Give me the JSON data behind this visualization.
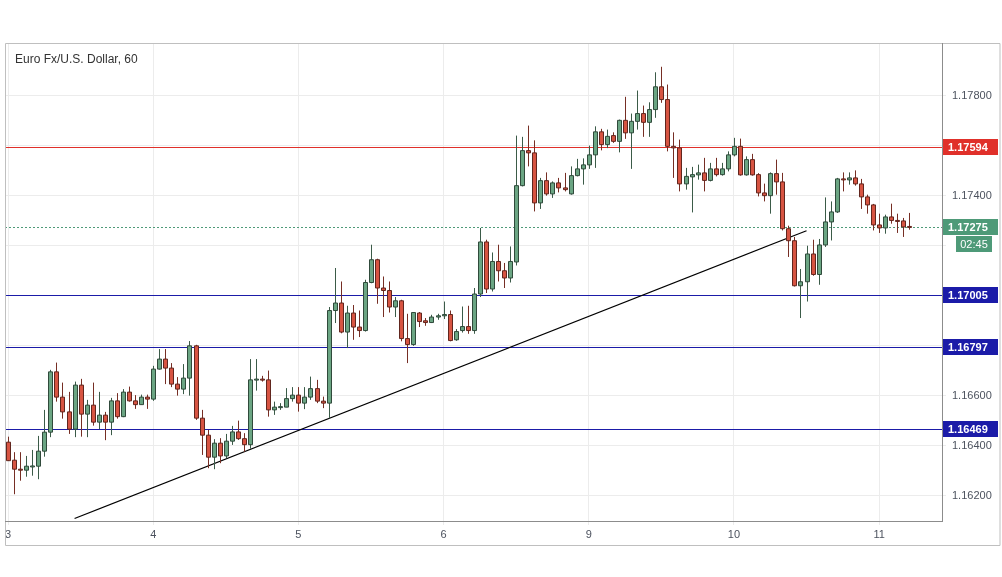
{
  "chart_data": {
    "type": "candlestick",
    "title": "Euro Fx/U.S. Dollar, 60",
    "categories": [
      "3",
      null,
      null,
      null,
      null,
      null,
      null,
      null,
      null,
      null,
      null,
      null,
      null,
      null,
      null,
      null,
      null,
      null,
      null,
      null,
      null,
      null,
      null,
      null,
      "4",
      null,
      null,
      null,
      null,
      null,
      null,
      null,
      null,
      null,
      null,
      null,
      null,
      null,
      null,
      null,
      null,
      null,
      null,
      null,
      null,
      null,
      null,
      null,
      "5",
      null,
      null,
      null,
      null,
      null,
      null,
      null,
      null,
      null,
      null,
      null,
      null,
      null,
      null,
      null,
      null,
      null,
      null,
      null,
      null,
      null,
      null,
      null,
      "6",
      null,
      null,
      null,
      null,
      null,
      null,
      null,
      null,
      null,
      null,
      null,
      null,
      null,
      null,
      null,
      null,
      null,
      null,
      null,
      null,
      null,
      null,
      null,
      "9",
      null,
      null,
      null,
      null,
      null,
      null,
      null,
      null,
      null,
      null,
      null,
      null,
      null,
      null,
      null,
      null,
      null,
      null,
      null,
      null,
      null,
      null,
      null,
      "10",
      null,
      null,
      null,
      null,
      null,
      null,
      null,
      null,
      null,
      null,
      null,
      null,
      null,
      null,
      null,
      null,
      null,
      null,
      null,
      null,
      null,
      null,
      null,
      "11",
      null,
      null,
      null,
      null,
      null
    ],
    "ohlc": [
      [
        1.16415,
        1.16437,
        1.1634,
        1.16341
      ],
      [
        1.16343,
        1.16375,
        1.16207,
        1.16307
      ],
      [
        1.16307,
        1.16375,
        1.16261,
        1.16303
      ],
      [
        1.16303,
        1.1636,
        1.16277,
        1.16319
      ],
      [
        1.16319,
        1.16384,
        1.16281,
        1.1632
      ],
      [
        1.16319,
        1.1644,
        1.16267,
        1.16379
      ],
      [
        1.16379,
        1.16544,
        1.16357,
        1.16455
      ],
      [
        1.16455,
        1.16704,
        1.16435,
        1.16696
      ],
      [
        1.16696,
        1.16733,
        1.16577,
        1.16595
      ],
      [
        1.16595,
        1.16653,
        1.16509,
        1.16536
      ],
      [
        1.16536,
        1.16616,
        1.16448,
        1.16467
      ],
      [
        1.16467,
        1.16657,
        1.16435,
        1.16643
      ],
      [
        1.16643,
        1.16668,
        1.16437,
        1.16527
      ],
      [
        1.16527,
        1.16584,
        1.16435,
        1.16563
      ],
      [
        1.16563,
        1.16653,
        1.16481,
        1.16495
      ],
      [
        1.16495,
        1.16616,
        1.16467,
        1.16523
      ],
      [
        1.16523,
        1.16536,
        1.16423,
        1.16495
      ],
      [
        1.16495,
        1.16592,
        1.16443,
        1.1658
      ],
      [
        1.1658,
        1.16611,
        1.16509,
        1.16517
      ],
      [
        1.16517,
        1.16627,
        1.16515,
        1.16615
      ],
      [
        1.16615,
        1.16637,
        1.16577,
        1.1658
      ],
      [
        1.1658,
        1.16603,
        1.16548,
        1.16565
      ],
      [
        1.16565,
        1.16605,
        1.16565,
        1.16595
      ],
      [
        1.16595,
        1.16605,
        1.16548,
        1.16587
      ],
      [
        1.16587,
        1.1672,
        1.1658,
        1.16707
      ],
      [
        1.16707,
        1.16787,
        1.16705,
        1.16747
      ],
      [
        1.16747,
        1.16787,
        1.16647,
        1.16711
      ],
      [
        1.16711,
        1.16731,
        1.16635,
        1.16647
      ],
      [
        1.16647,
        1.16675,
        1.16601,
        1.16627
      ],
      [
        1.16627,
        1.16727,
        1.16607,
        1.16671
      ],
      [
        1.16671,
        1.16819,
        1.16601,
        1.168
      ],
      [
        1.168,
        1.16804,
        1.16504,
        1.16511
      ],
      [
        1.16511,
        1.16544,
        1.16364,
        1.16443
      ],
      [
        1.16443,
        1.16464,
        1.16311,
        1.16355
      ],
      [
        1.16355,
        1.16427,
        1.16307,
        1.16411
      ],
      [
        1.16411,
        1.16431,
        1.16331,
        1.1636
      ],
      [
        1.1636,
        1.16448,
        1.16351,
        1.16419
      ],
      [
        1.16419,
        1.1648,
        1.16404,
        1.16456
      ],
      [
        1.16456,
        1.16501,
        1.16424,
        1.16429
      ],
      [
        1.16429,
        1.16451,
        1.16377,
        1.16405
      ],
      [
        1.16405,
        1.16747,
        1.16389,
        1.16664
      ],
      [
        1.16664,
        1.16747,
        1.16621,
        1.16667
      ],
      [
        1.16667,
        1.1668,
        1.16657,
        1.16664
      ],
      [
        1.16664,
        1.16701,
        1.16517,
        1.16544
      ],
      [
        1.16544,
        1.16577,
        1.16524,
        1.16555
      ],
      [
        1.16555,
        1.16571,
        1.16544,
        1.16557
      ],
      [
        1.16555,
        1.16631,
        1.16555,
        1.16589
      ],
      [
        1.16589,
        1.16635,
        1.16577,
        1.16603
      ],
      [
        1.16603,
        1.16635,
        1.16537,
        1.16571
      ],
      [
        1.16571,
        1.16635,
        1.16547,
        1.16595
      ],
      [
        1.16595,
        1.16677,
        1.16584,
        1.16629
      ],
      [
        1.16629,
        1.16664,
        1.16571,
        1.16579
      ],
      [
        1.16579,
        1.16597,
        1.16551,
        1.16571
      ],
      [
        1.16571,
        1.16955,
        1.16511,
        1.16941
      ],
      [
        1.16941,
        1.17111,
        1.16891,
        1.16971
      ],
      [
        1.16971,
        1.17057,
        1.1685,
        1.16855
      ],
      [
        1.16855,
        1.1696,
        1.16791,
        1.16931
      ],
      [
        1.16931,
        1.16963,
        1.16824,
        1.16875
      ],
      [
        1.16875,
        1.16941,
        1.16835,
        1.16861
      ],
      [
        1.16861,
        1.17064,
        1.16857,
        1.17053
      ],
      [
        1.17053,
        1.17204,
        1.1705,
        1.17144
      ],
      [
        1.17144,
        1.17148,
        1.16968,
        1.17031
      ],
      [
        1.17031,
        1.17077,
        1.16915,
        1.17021
      ],
      [
        1.17021,
        1.17057,
        1.16933,
        1.16955
      ],
      [
        1.16955,
        1.16995,
        1.16915,
        1.1698
      ],
      [
        1.1698,
        1.16984,
        1.16818,
        1.16829
      ],
      [
        1.16829,
        1.16928,
        1.16731,
        1.16805
      ],
      [
        1.16805,
        1.16935,
        1.168,
        1.16933
      ],
      [
        1.16931,
        1.16935,
        1.16875,
        1.16897
      ],
      [
        1.169,
        1.16911,
        1.1688,
        1.16893
      ],
      [
        1.16893,
        1.16924,
        1.16891,
        1.16915
      ],
      [
        1.16915,
        1.16928,
        1.16904,
        1.1692
      ],
      [
        1.1692,
        1.16977,
        1.16907,
        1.16925
      ],
      [
        1.16925,
        1.16941,
        1.16818,
        1.16821
      ],
      [
        1.16824,
        1.16867,
        1.1682,
        1.16857
      ],
      [
        1.16861,
        1.16957,
        1.16853,
        1.16877
      ],
      [
        1.16877,
        1.1696,
        1.16848,
        1.16861
      ],
      [
        1.16861,
        1.17031,
        1.16848,
        1.17007
      ],
      [
        1.17007,
        1.17271,
        1.16995,
        1.17215
      ],
      [
        1.17215,
        1.17224,
        1.17011,
        1.17027
      ],
      [
        1.17027,
        1.17173,
        1.17017,
        1.17137
      ],
      [
        1.17137,
        1.17204,
        1.17057,
        1.171
      ],
      [
        1.171,
        1.17131,
        1.17031,
        1.17071
      ],
      [
        1.17071,
        1.17197,
        1.17053,
        1.17137
      ],
      [
        1.17135,
        1.1764,
        1.17121,
        1.1744
      ],
      [
        1.1744,
        1.17635,
        1.17437,
        1.1758
      ],
      [
        1.1758,
        1.1768,
        1.17517,
        1.17571
      ],
      [
        1.17571,
        1.17621,
        1.17337,
        1.17371
      ],
      [
        1.17371,
        1.17471,
        1.17347,
        1.1746
      ],
      [
        1.1746,
        1.17493,
        1.174,
        1.17407
      ],
      [
        1.17407,
        1.17457,
        1.17391,
        1.17451
      ],
      [
        1.17451,
        1.17471,
        1.17413,
        1.17431
      ],
      [
        1.17431,
        1.17491,
        1.17417,
        1.17424
      ],
      [
        1.17407,
        1.17517,
        1.17404,
        1.1748
      ],
      [
        1.1748,
        1.17547,
        1.17477,
        1.17507
      ],
      [
        1.17507,
        1.17549,
        1.17444,
        1.17523
      ],
      [
        1.17523,
        1.176,
        1.17507,
        1.17563
      ],
      [
        1.17563,
        1.17677,
        1.17511,
        1.17655
      ],
      [
        1.17655,
        1.17667,
        1.17581,
        1.17604
      ],
      [
        1.17604,
        1.17664,
        1.1759,
        1.17637
      ],
      [
        1.1764,
        1.17653,
        1.17611,
        1.17617
      ],
      [
        1.17617,
        1.17704,
        1.17573,
        1.17701
      ],
      [
        1.17701,
        1.17795,
        1.17627,
        1.17651
      ],
      [
        1.17651,
        1.17728,
        1.17507,
        1.17697
      ],
      [
        1.17697,
        1.1782,
        1.17664,
        1.17728
      ],
      [
        1.17728,
        1.1776,
        1.17635,
        1.17693
      ],
      [
        1.17693,
        1.17773,
        1.17635,
        1.17744
      ],
      [
        1.17744,
        1.17893,
        1.17711,
        1.17835
      ],
      [
        1.17835,
        1.17915,
        1.17771,
        1.17784
      ],
      [
        1.17784,
        1.17844,
        1.17577,
        1.17597
      ],
      [
        1.17597,
        1.17653,
        1.17471,
        1.17591
      ],
      [
        1.17591,
        1.17624,
        1.17417,
        1.17447
      ],
      [
        1.17447,
        1.17511,
        1.17424,
        1.17477
      ],
      [
        1.17475,
        1.17515,
        1.17333,
        1.17484
      ],
      [
        1.17483,
        1.17524,
        1.17464,
        1.17491
      ],
      [
        1.17491,
        1.17551,
        1.17417,
        1.17461
      ],
      [
        1.17461,
        1.17531,
        1.17457,
        1.17507
      ],
      [
        1.17507,
        1.17551,
        1.17477,
        1.17484
      ],
      [
        1.17484,
        1.17531,
        1.1748,
        1.17507
      ],
      [
        1.17507,
        1.17577,
        1.17497,
        1.17563
      ],
      [
        1.17563,
        1.17631,
        1.17557,
        1.17597
      ],
      [
        1.17597,
        1.17628,
        1.1748,
        1.17483
      ],
      [
        1.17483,
        1.17557,
        1.1748,
        1.17544
      ],
      [
        1.17544,
        1.17567,
        1.1748,
        1.17483
      ],
      [
        1.17484,
        1.1749,
        1.17397,
        1.17411
      ],
      [
        1.17411,
        1.17448,
        1.17377,
        1.174
      ],
      [
        1.174,
        1.17493,
        1.17328,
        1.17488
      ],
      [
        1.17488,
        1.17544,
        1.17404,
        1.17455
      ],
      [
        1.17455,
        1.17491,
        1.17261,
        1.17268
      ],
      [
        1.17268,
        1.1728,
        1.17155,
        1.1722
      ],
      [
        1.1722,
        1.17235,
        1.17037,
        1.1704
      ],
      [
        1.1704,
        1.17107,
        1.16911,
        1.17056
      ],
      [
        1.17056,
        1.172,
        1.16977,
        1.17167
      ],
      [
        1.17167,
        1.17224,
        1.1708,
        1.17085
      ],
      [
        1.17085,
        1.17227,
        1.17044,
        1.17203
      ],
      [
        1.17203,
        1.17393,
        1.17195,
        1.17295
      ],
      [
        1.17295,
        1.17377,
        1.17221,
        1.17335
      ],
      [
        1.17335,
        1.17471,
        1.17331,
        1.17467
      ],
      [
        1.17467,
        1.17493,
        1.17417,
        1.17463
      ],
      [
        1.17463,
        1.17493,
        1.17444,
        1.17471
      ],
      [
        1.17471,
        1.17501,
        1.1744,
        1.17447
      ],
      [
        1.17447,
        1.17467,
        1.17347,
        1.17395
      ],
      [
        1.17395,
        1.17404,
        1.17328,
        1.17363
      ],
      [
        1.17363,
        1.17367,
        1.17261,
        1.17283
      ],
      [
        1.17283,
        1.17328,
        1.17251,
        1.17271
      ],
      [
        1.17271,
        1.17324,
        1.17248,
        1.17315
      ],
      [
        1.17315,
        1.17368,
        1.17288,
        1.17301
      ],
      [
        1.17301,
        1.17328,
        1.17251,
        1.17297
      ],
      [
        1.17299,
        1.17311,
        1.17235,
        1.17275
      ],
      [
        1.17277,
        1.17331,
        1.17264,
        1.17275
      ]
    ],
    "colors": [
      "#d75442",
      "#d75442",
      "#d75442",
      "#6ba583",
      "#6ba583",
      "#6ba583",
      "#6ba583",
      "#6ba583",
      "#d75442",
      "#d75442",
      "#d75442",
      "#6ba583",
      "#d75442",
      "#6ba583",
      "#d75442",
      "#6ba583",
      "#d75442",
      "#6ba583",
      "#d75442",
      "#6ba583",
      "#d75442",
      "#d75442",
      "#6ba583",
      "#d75442",
      "#6ba583",
      "#6ba583",
      "#d75442",
      "#d75442",
      "#d75442",
      "#6ba583",
      "#6ba583",
      "#d75442",
      "#d75442",
      "#d75442",
      "#6ba583",
      "#d75442",
      "#6ba583",
      "#6ba583",
      "#d75442",
      "#d75442",
      "#6ba583",
      "#6ba583",
      "#d75442",
      "#d75442",
      "#6ba583",
      "#6ba583",
      "#6ba583",
      "#6ba583",
      "#d75442",
      "#6ba583",
      "#6ba583",
      "#d75442",
      "#d75442",
      "#6ba583",
      "#6ba583",
      "#d75442",
      "#6ba583",
      "#d75442",
      "#d75442",
      "#6ba583",
      "#6ba583",
      "#d75442",
      "#d75442",
      "#d75442",
      "#6ba583",
      "#d75442",
      "#d75442",
      "#6ba583",
      "#d75442",
      "#d75442",
      "#6ba583",
      "#6ba583",
      "#6ba583",
      "#d75442",
      "#6ba583",
      "#6ba583",
      "#d75442",
      "#6ba583",
      "#6ba583",
      "#d75442",
      "#6ba583",
      "#d75442",
      "#d75442",
      "#6ba583",
      "#6ba583",
      "#6ba583",
      "#d75442",
      "#d75442",
      "#6ba583",
      "#d75442",
      "#6ba583",
      "#d75442",
      "#d75442",
      "#6ba583",
      "#6ba583",
      "#6ba583",
      "#6ba583",
      "#6ba583",
      "#d75442",
      "#6ba583",
      "#d75442",
      "#6ba583",
      "#d75442",
      "#6ba583",
      "#6ba583",
      "#d75442",
      "#6ba583",
      "#6ba583",
      "#d75442",
      "#d75442",
      "#d75442",
      "#d75442",
      "#6ba583",
      "#6ba583",
      "#6ba583",
      "#d75442",
      "#6ba583",
      "#d75442",
      "#6ba583",
      "#6ba583",
      "#6ba583",
      "#d75442",
      "#6ba583",
      "#d75442",
      "#d75442",
      "#d75442",
      "#6ba583",
      "#d75442",
      "#d75442",
      "#d75442",
      "#d75442",
      "#6ba583",
      "#6ba583",
      "#d75442",
      "#6ba583",
      "#6ba583",
      "#6ba583",
      "#6ba583",
      "#d75442",
      "#6ba583",
      "#d75442",
      "#d75442",
      "#d75442",
      "#d75442",
      "#d75442",
      "#6ba583",
      "#d75442",
      "#d75442",
      "#d75442",
      "#d75442"
    ],
    "series": [
      {
        "type": "line",
        "color": "#000000",
        "values": [
          null,
          null,
          null,
          null,
          null,
          null,
          null,
          null,
          null,
          null,
          null,
          1.1611,
          null,
          null,
          null,
          null,
          null,
          null,
          null,
          null,
          null,
          null,
          null,
          null,
          null,
          null,
          null,
          null,
          null,
          null,
          null,
          null,
          null,
          null,
          null,
          null,
          null,
          null,
          null,
          null,
          null,
          null,
          null,
          null,
          null,
          null,
          null,
          null,
          null,
          null,
          null,
          null,
          null,
          null,
          null,
          null,
          null,
          null,
          null,
          null,
          null,
          null,
          null,
          null,
          null,
          null,
          null,
          null,
          null,
          null,
          null,
          null,
          null,
          null,
          null,
          null,
          null,
          null,
          null,
          null,
          null,
          null,
          null,
          null,
          null,
          null,
          null,
          null,
          null,
          null,
          null,
          null,
          null,
          null,
          null,
          null,
          null,
          null,
          null,
          null,
          null,
          null,
          null,
          null,
          null,
          null,
          null,
          null,
          null,
          null,
          null,
          null,
          null,
          null,
          null,
          null,
          null,
          null,
          null,
          null,
          null,
          null,
          null,
          null,
          null,
          null,
          null,
          null,
          null,
          null,
          null,
          null,
          1.1726,
          null,
          null,
          null,
          null,
          null,
          null,
          null,
          null,
          null,
          null,
          null,
          null,
          null,
          null,
          null,
          null,
          null
        ]
      }
    ],
    "ylim": [
      1.161,
      1.1801
    ],
    "yticks": [
      {
        "value": 1.162,
        "label": "1.16200"
      },
      {
        "value": 1.164,
        "label": "1.16400"
      },
      {
        "value": 1.166,
        "label": "1.16600"
      },
      {
        "value": 1.168,
        "label": null
      },
      {
        "value": 1.17,
        "label": null
      },
      {
        "value": 1.172,
        "label": null
      },
      {
        "value": 1.174,
        "label": "1.17400"
      },
      {
        "value": 1.176,
        "label": null
      },
      {
        "value": 1.178,
        "label": "1.17800"
      }
    ],
    "grid": true,
    "ref_lines": [
      {
        "axis": "y",
        "value": 1.17594,
        "label": "1.17594",
        "color": "#e0302a"
      },
      {
        "axis": "y",
        "value": 1.17005,
        "label": "1.17005",
        "color": "#1b1ba8"
      },
      {
        "axis": "y",
        "value": 1.16797,
        "label": "1.16797",
        "color": "#1b1ba8"
      },
      {
        "axis": "y",
        "value": 1.16469,
        "label": "1.16469",
        "color": "#1b1ba8"
      },
      {
        "axis": "y",
        "value": 1.17275,
        "label": "1.17275",
        "color": "#4e9a78",
        "line_style": "dotted"
      }
    ],
    "annotations": [
      "02:45"
    ]
  }
}
